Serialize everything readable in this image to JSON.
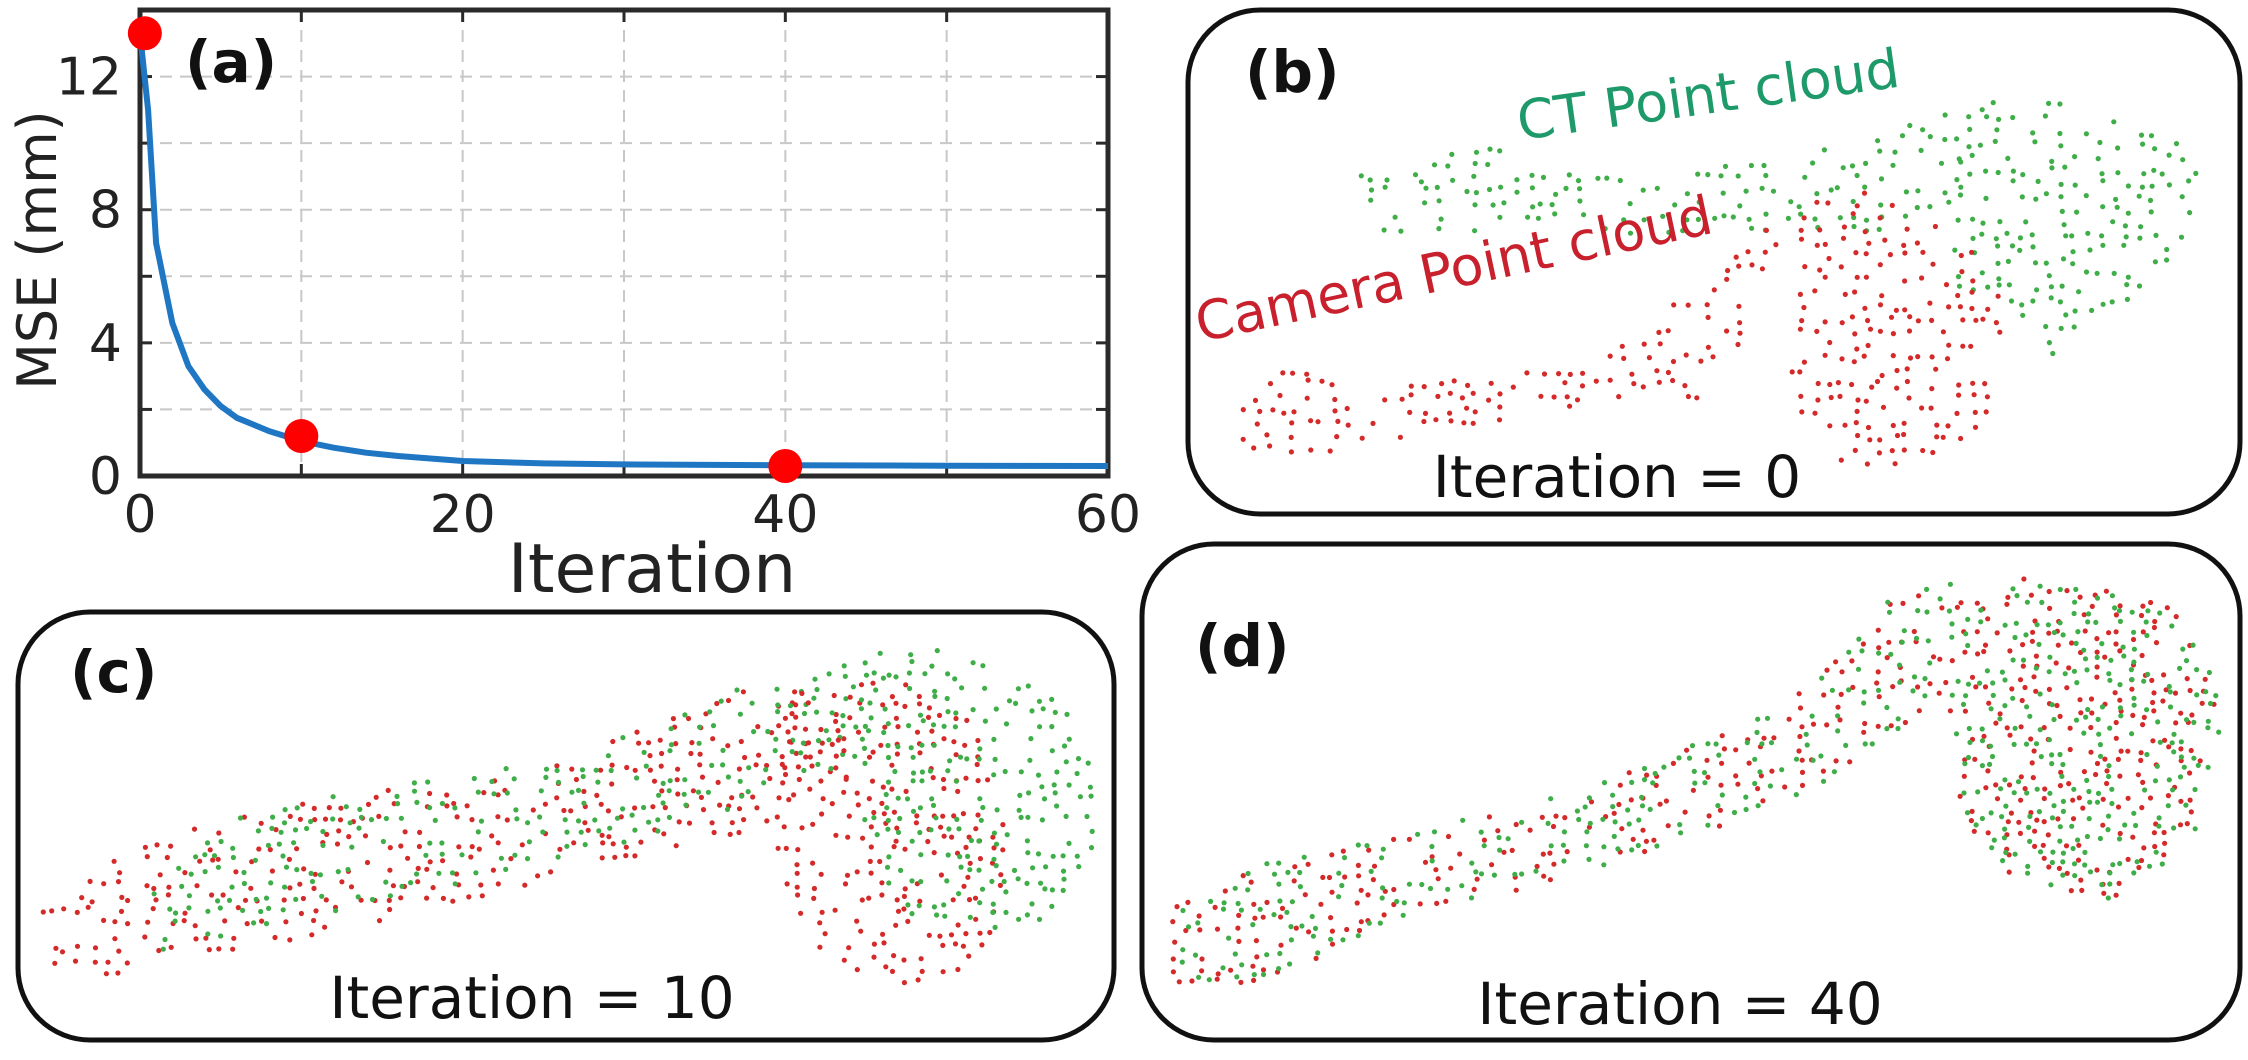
{
  "chart_data": {
    "type": "line",
    "panel_label": "(a)",
    "xlabel": "Iteration",
    "ylabel": "MSE (mm)",
    "xlim": [
      0,
      60
    ],
    "ylim": [
      0,
      14
    ],
    "xticks": [
      0,
      20,
      40,
      60
    ],
    "yticks": [
      0,
      4,
      8,
      12
    ],
    "xtick_labels": [
      "0",
      "20",
      "40",
      "60"
    ],
    "ytick_labels": [
      "0",
      "4",
      "8",
      "12"
    ],
    "grid": true,
    "series": [
      {
        "name": "MSE",
        "color": "#1f77c4",
        "x": [
          0,
          0.5,
          1,
          2,
          3,
          4,
          5,
          6,
          8,
          10,
          12,
          14,
          16,
          20,
          25,
          30,
          40,
          50,
          60
        ],
        "y": [
          13.3,
          11.0,
          7.0,
          4.6,
          3.3,
          2.6,
          2.1,
          1.75,
          1.35,
          1.05,
          0.85,
          0.7,
          0.6,
          0.45,
          0.38,
          0.35,
          0.32,
          0.31,
          0.3
        ]
      }
    ],
    "highlight_points": [
      {
        "x": 0.3,
        "y": 13.3
      },
      {
        "x": 10,
        "y": 1.2
      },
      {
        "x": 40,
        "y": 0.3
      }
    ],
    "highlight_color": "#ff0000"
  },
  "panels": {
    "b": {
      "label": "(b)",
      "caption": "Iteration = 0",
      "ct_label": "CT Point cloud",
      "camera_label": "Camera Point cloud"
    },
    "c": {
      "label": "(c)",
      "caption": "Iteration = 10"
    },
    "d": {
      "label": "(d)",
      "caption": "Iteration = 40"
    }
  },
  "colors": {
    "ct": "#3fae49",
    "camera": "#d42a2a",
    "ct_text": "#1e9a6a",
    "camera_text": "#c8202c"
  }
}
